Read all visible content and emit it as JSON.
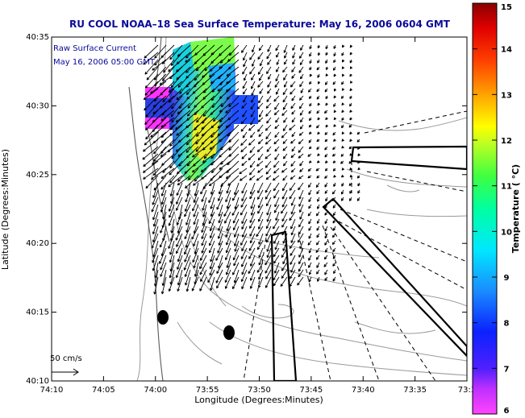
{
  "title": "RU COOL  NOAA–18  Sea Surface Temperature:  May 16, 2006 0604 GMT",
  "legend": {
    "line1": "Raw Surface Current",
    "line2": "May 16, 2006 05:00 GMT",
    "scale_label": "50 cm/s"
  },
  "axes": {
    "xlabel": "Longitude (Degrees:Minutes)",
    "ylabel": "Latitude (Degrees:Minutes)",
    "xticks": [
      "74:10",
      "74:05",
      "74:00",
      "73:55",
      "73:50",
      "73:45",
      "73:40",
      "73:35",
      "73:3"
    ],
    "yticks": [
      "40:35",
      "40:30",
      "40:25",
      "40:20",
      "40:15",
      "40:10"
    ]
  },
  "colorbar": {
    "label": "Temperature ( °C)",
    "min": 6,
    "max": 15,
    "ticks": [
      "15",
      "14",
      "13",
      "12",
      "11",
      "10",
      "9",
      "8",
      "7",
      "6"
    ]
  },
  "colors": {
    "title": "#0a0a9a",
    "vector": "#000000",
    "contour": "#9a9a9a"
  }
}
